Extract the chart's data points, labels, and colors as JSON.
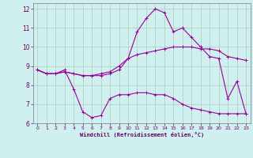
{
  "xlabel": "Windchill (Refroidissement éolien,°C)",
  "bg_color": "#cff0ee",
  "line_color": "#990099",
  "grid_color": "#aaccbb",
  "xlim": [
    -0.5,
    23.5
  ],
  "ylim": [
    6,
    12.3
  ],
  "xticks": [
    0,
    1,
    2,
    3,
    4,
    5,
    6,
    7,
    8,
    9,
    10,
    11,
    12,
    13,
    14,
    15,
    16,
    17,
    18,
    19,
    20,
    21,
    22,
    23
  ],
  "yticks": [
    6,
    7,
    8,
    9,
    10,
    11,
    12
  ],
  "series1_x": [
    0,
    1,
    2,
    3,
    4,
    5,
    6,
    7,
    8,
    9,
    10,
    11,
    12,
    13,
    14,
    15,
    16,
    17,
    18,
    19,
    20,
    21,
    22,
    23
  ],
  "series1_y": [
    8.8,
    8.6,
    8.6,
    8.8,
    7.8,
    6.6,
    6.3,
    6.4,
    7.3,
    7.5,
    7.5,
    7.6,
    7.6,
    7.5,
    7.5,
    7.3,
    7.0,
    6.8,
    6.7,
    6.6,
    6.5,
    6.5,
    6.5,
    6.5
  ],
  "series2_x": [
    0,
    1,
    2,
    3,
    4,
    5,
    6,
    7,
    8,
    9,
    10,
    11,
    12,
    13,
    14,
    15,
    16,
    17,
    18,
    19,
    20,
    21,
    22,
    23
  ],
  "series2_y": [
    8.8,
    8.6,
    8.6,
    8.7,
    8.6,
    8.5,
    8.5,
    8.6,
    8.7,
    9.0,
    9.4,
    9.6,
    9.7,
    9.8,
    9.9,
    10.0,
    10.0,
    10.0,
    9.9,
    9.9,
    9.8,
    9.5,
    9.4,
    9.3
  ],
  "series3_x": [
    0,
    1,
    2,
    3,
    4,
    5,
    6,
    7,
    8,
    9,
    10,
    11,
    12,
    13,
    14,
    15,
    16,
    17,
    18,
    19,
    20,
    21,
    22,
    23
  ],
  "series3_y": [
    8.8,
    8.6,
    8.6,
    8.7,
    8.6,
    8.5,
    8.5,
    8.5,
    8.6,
    8.8,
    9.4,
    10.8,
    11.5,
    12.0,
    11.8,
    10.8,
    11.0,
    10.5,
    10.0,
    9.5,
    9.4,
    7.3,
    8.2,
    6.5
  ]
}
